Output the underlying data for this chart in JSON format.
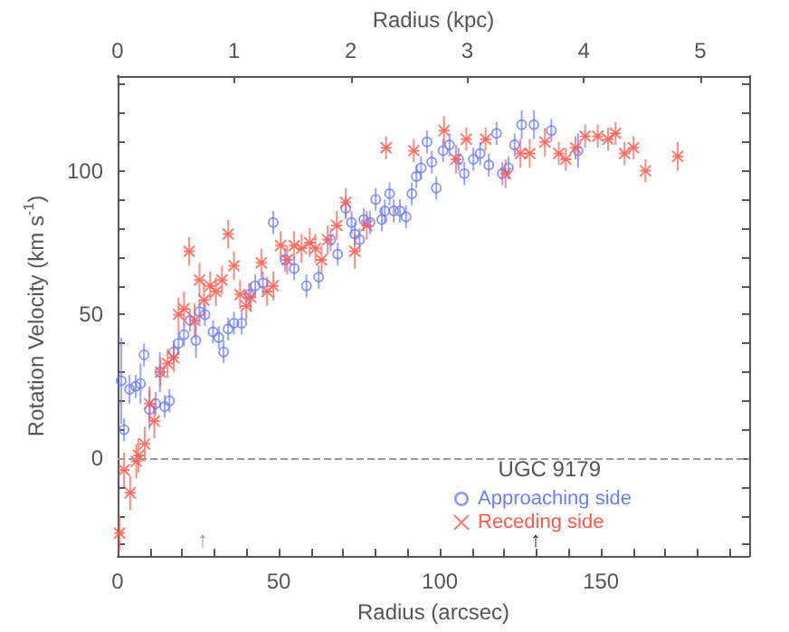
{
  "chart_data": {
    "type": "scatter",
    "xlabel": "Radius (arcsec)",
    "x2label": "Radius (kpc)",
    "ylabel": "Rotation Velocity (km s$^{-1}$)",
    "legend_title": "UGC 9179",
    "xlim": [
      0,
      196
    ],
    "xticks": [
      0,
      {
        "value": 10,
        "label": null
      },
      {
        "value": 20,
        "label": null
      },
      {
        "value": 30,
        "label": null
      },
      {
        "value": 40,
        "label": null
      },
      50,
      {
        "value": 60,
        "label": null
      },
      {
        "value": 70,
        "label": null
      },
      {
        "value": 80,
        "label": null
      },
      {
        "value": 90,
        "label": null
      },
      100,
      {
        "value": 110,
        "label": null
      },
      {
        "value": 120,
        "label": null
      },
      {
        "value": 130,
        "label": null
      },
      {
        "value": 140,
        "label": null
      },
      150,
      {
        "value": 160,
        "label": null
      },
      {
        "value": 170,
        "label": null
      },
      {
        "value": 180,
        "label": null
      },
      {
        "value": 190,
        "label": null
      }
    ],
    "x2lim": [
      0,
      5.42
    ],
    "x2ticks": [
      0,
      1,
      2,
      3,
      4,
      5
    ],
    "ylim": [
      -34,
      133
    ],
    "yticks": [
      {
        "value": -30,
        "label": null
      },
      {
        "value": -20,
        "label": null
      },
      {
        "value": -10,
        "label": null
      },
      0,
      {
        "value": 10,
        "label": null
      },
      {
        "value": 20,
        "label": null
      },
      {
        "value": 30,
        "label": null
      },
      {
        "value": 40,
        "label": null
      },
      50,
      {
        "value": 60,
        "label": null
      },
      {
        "value": 70,
        "label": null
      },
      {
        "value": 80,
        "label": null
      },
      {
        "value": 90,
        "label": null
      },
      100,
      {
        "value": 110,
        "label": null
      },
      {
        "value": 120,
        "label": null
      },
      {
        "value": 130,
        "label": null
      }
    ],
    "legend": "bottom right",
    "grid": false,
    "ref_lines": [
      {
        "axis": "y",
        "value": 0,
        "label": null,
        "color": "#999999",
        "line_style": "dashed"
      }
    ],
    "annotations": [
      "↑",
      "↑"
    ],
    "series": [
      {
        "name": "Approaching side",
        "color": "#6e7bff",
        "marker": "circle",
        "x": [
          1.1,
          2,
          3.7,
          5.6,
          7.1,
          8.2,
          9.9,
          11.8,
          13.1,
          14.6,
          16.1,
          17.4,
          18.9,
          20.6,
          22.5,
          24.3,
          25.4,
          27.1,
          29.6,
          31.4,
          32.9,
          34.3,
          36.1,
          38.5,
          40.8,
          42.7,
          45.1,
          48.3,
          52,
          54.8,
          58.6,
          62.4,
          66.1,
          68.3,
          70.8,
          72.6,
          73.6,
          75.1,
          76.4,
          78.3,
          80.1,
          82,
          82.9,
          84.4,
          85.7,
          87.6,
          89.5,
          91.3,
          92.7,
          94.2,
          96,
          97.5,
          98.9,
          101,
          103,
          105.8,
          107.6,
          110.4,
          112.5,
          115.2,
          117.6,
          119.4,
          121.3,
          123.2,
          125.4,
          129.2,
          134.6,
          142.9
        ],
        "values": [
          27,
          10,
          24,
          25,
          26,
          36,
          17,
          19,
          30,
          18,
          20,
          37,
          40,
          43,
          48,
          41,
          51,
          50,
          44,
          42,
          37,
          45,
          47,
          47,
          57,
          60,
          61,
          82,
          69,
          66,
          60,
          63,
          76,
          71,
          87,
          82,
          78,
          76,
          83,
          82,
          90,
          83,
          86,
          92,
          86,
          86,
          84,
          92,
          98,
          101,
          110,
          103,
          94,
          107,
          109,
          104,
          99,
          104,
          106,
          102,
          113,
          99,
          101,
          109,
          116,
          116,
          114,
          107
        ],
        "errors": [
          15,
          4,
          5,
          4,
          7,
          4,
          7,
          4,
          7,
          4,
          4,
          4,
          4,
          4,
          4,
          6,
          4,
          4,
          4,
          4,
          4,
          4,
          4,
          4,
          4,
          4,
          4,
          4,
          4,
          4,
          4,
          4,
          4,
          4,
          4,
          4,
          4,
          4,
          4,
          4,
          4,
          4,
          4,
          4,
          4,
          4,
          4,
          4,
          4,
          4,
          4,
          4,
          4,
          4,
          4,
          4,
          4,
          4,
          4,
          4,
          4,
          4,
          4,
          4,
          5,
          5,
          4,
          6
        ]
      },
      {
        "name": "Receding side",
        "color": "#ff5a4f",
        "marker": "cross",
        "x": [
          0.6,
          2,
          3.9,
          5.8,
          6.5,
          8.4,
          9.9,
          11.4,
          13.3,
          15.5,
          17.4,
          18.9,
          20.6,
          22.2,
          23.9,
          25.4,
          26.8,
          28.7,
          30.5,
          32.4,
          34.3,
          36.1,
          38,
          39.9,
          41.3,
          44.6,
          46.4,
          48.3,
          50.6,
          52.6,
          54.8,
          57.1,
          59.6,
          61.4,
          63.3,
          65.2,
          68,
          70.8,
          73.6,
          77.3,
          83.3,
          91.9,
          101.3,
          105,
          108.2,
          114.2,
          120.4,
          125,
          127.9,
          132.6,
          136.9,
          139.1,
          142.1,
          145.1,
          149,
          152.2,
          154.5,
          157.3,
          160.1,
          163.8,
          173.8
        ],
        "values": [
          -26,
          -4,
          -12,
          -1,
          1,
          5,
          19,
          13,
          30,
          33,
          35,
          50,
          52,
          72,
          48,
          62,
          55,
          60,
          58,
          62,
          78,
          67,
          57,
          53,
          56,
          68,
          58,
          60,
          74,
          69,
          74,
          73,
          75,
          73,
          69,
          76,
          81,
          89,
          72,
          81,
          108,
          107,
          114,
          104,
          111,
          111,
          99,
          106,
          106,
          110,
          106,
          104,
          108,
          112,
          112,
          111,
          113,
          106,
          108,
          100,
          105
        ],
        "errors": [
          6,
          6,
          6,
          6,
          6,
          6,
          6,
          6,
          5,
          5,
          5,
          6,
          6,
          5,
          6,
          6,
          6,
          5,
          5,
          5,
          5,
          5,
          5,
          5,
          5,
          5,
          5,
          5,
          5,
          5,
          5,
          5,
          5,
          5,
          5,
          5,
          5,
          5,
          6,
          5,
          4,
          4,
          5,
          5,
          4,
          4,
          5,
          5,
          5,
          5,
          4,
          4,
          4,
          4,
          4,
          4,
          4,
          4,
          4,
          4,
          5
        ]
      }
    ]
  }
}
